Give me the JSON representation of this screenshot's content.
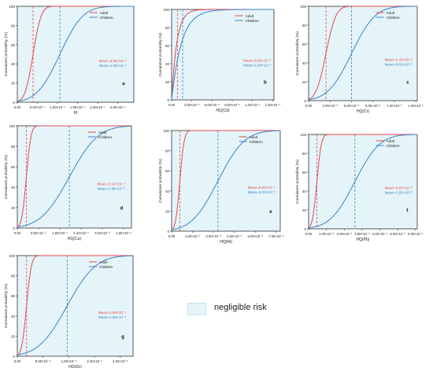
{
  "legend": {
    "label": "negligible risk",
    "color": "#e4f4f9"
  },
  "colors": {
    "adult": "#e8474b",
    "children": "#3e82c6",
    "shade": "#e4f4f9",
    "axis": "#333333"
  },
  "ylabel": "Cumulative probability (%)",
  "series_names": [
    "Adult",
    "Children"
  ],
  "yticks": [
    "0",
    "20",
    "40",
    "60",
    "80",
    "100"
  ],
  "chart_data": [
    {
      "type": "line",
      "panel_label": "a",
      "xlabel": "HI",
      "xticks": [
        "0.00",
        "5.00×10⁻²",
        "1.00×10⁻¹",
        "1.50×10⁻¹",
        "2.00×10⁻¹",
        "2.50×10⁻¹"
      ],
      "xlim": [
        0,
        0.29
      ],
      "ylim": [
        0,
        100
      ],
      "shaded_to": 0.29,
      "adult": {
        "mean_label": "Mean=3.92×10⁻²",
        "mean": 0.0392,
        "sd": 0.016,
        "curve": "erf"
      },
      "children": {
        "mean_label": "Mean=1.06×10⁻¹",
        "mean": 0.106,
        "sd": 0.045,
        "curve": "erf"
      }
    },
    {
      "type": "line",
      "panel_label": "b",
      "xlabel": "HQ(Cd)",
      "xticks": [
        "0.00",
        "3.00×10⁻²",
        "6.00×10⁻²",
        "9.00×10⁻²",
        "1.20×10⁻¹",
        "1.50×10⁻¹"
      ],
      "xlim": [
        0,
        0.152
      ],
      "ylim": [
        0,
        100
      ],
      "shaded_to": 0.152,
      "adult": {
        "mean_label": "Mean=8.63×10⁻³",
        "mean": 0.00863,
        "curve": "sat"
      },
      "children": {
        "mean_label": "Mean=1.64×10⁻²",
        "mean": 0.0164,
        "curve": "sat"
      }
    },
    {
      "type": "line",
      "panel_label": "c",
      "xlabel": "HQ(Cr)",
      "xticks": [
        "0.00",
        "3.00×10⁻²",
        "6.00×10⁻²",
        "9.00×10⁻²",
        "1.20×10⁻¹",
        "1.50×10⁻¹"
      ],
      "xlim": [
        0,
        0.152
      ],
      "ylim": [
        0,
        100
      ],
      "shaded_to": 0.152,
      "adult": {
        "mean_label": "Mean=2.43×10⁻²",
        "mean": 0.0243,
        "sd": 0.011,
        "curve": "erf"
      },
      "children": {
        "mean_label": "Mean=6.01×10⁻²",
        "mean": 0.0601,
        "sd": 0.026,
        "curve": "erf"
      }
    },
    {
      "type": "line",
      "panel_label": "d",
      "xlabel": "HQ(Cu)",
      "xticks": [
        "0.00",
        "8.00×10⁻⁴",
        "1.60×10⁻³",
        "2.40×10⁻³",
        "3.20×10⁻³",
        "4.00×10⁻³"
      ],
      "xlim": [
        0,
        0.0043
      ],
      "ylim": [
        0,
        100
      ],
      "shaded_to": 0.0043,
      "adult": {
        "mean_label": "Mean=3.41×10⁻⁴",
        "mean": 0.000341,
        "sd": 0.00014,
        "curve": "erf"
      },
      "children": {
        "mean_label": "Mean=1.96×10⁻³",
        "mean": 0.00196,
        "sd": 0.00085,
        "curve": "erf"
      }
    },
    {
      "type": "line",
      "panel_label": "e",
      "xlabel": "HQ(Ni)",
      "xticks": [
        "0.00",
        "1.50×10⁻³",
        "3.00×10⁻³",
        "4.50×10⁻³",
        "6.00×10⁻³",
        "7.50×10⁻³"
      ],
      "xlim": [
        0,
        0.0078
      ],
      "ylim": [
        0,
        100
      ],
      "shaded_to": 0.0078,
      "adult": {
        "mean_label": "Mean=5.92×10⁻⁴",
        "mean": 0.000592,
        "sd": 0.00025,
        "curve": "erf"
      },
      "children": {
        "mean_label": "Mean=3.33×10⁻³",
        "mean": 0.00333,
        "sd": 0.0015,
        "curve": "erf"
      }
    },
    {
      "type": "line",
      "panel_label": "f",
      "xlabel": "HQ(Pb)",
      "xticks": [
        "0.00",
        "1.00×10⁻²",
        "2.00×10⁻²",
        "3.00×10⁻²",
        "4.00×10⁻²",
        "5.00×10⁻²",
        "6.00×10⁻²"
      ],
      "xlim": [
        0,
        0.061
      ],
      "ylim": [
        0,
        100
      ],
      "shaded_to": 0.061,
      "adult": {
        "mean_label": "Mean=4.67×10⁻³",
        "mean": 0.00467,
        "sd": 0.002,
        "curve": "erf"
      },
      "children": {
        "mean_label": "Mean=2.60×10⁻²",
        "mean": 0.026,
        "sd": 0.011,
        "curve": "erf"
      }
    },
    {
      "type": "line",
      "panel_label": "g",
      "xlabel": "HQ(Zn)",
      "xticks": [
        "0.00",
        "8.00×10⁻⁴",
        "1.60×10⁻³",
        "2.40×10⁻³",
        "3.20×10⁻³"
      ],
      "xlim": [
        0,
        0.0036
      ],
      "ylim": [
        0,
        100
      ],
      "shaded_to": 0.0036,
      "adult": {
        "mean_label": "Mean=2.88×10⁻⁴",
        "mean": 0.000288,
        "sd": 0.00012,
        "curve": "erf"
      },
      "children": {
        "mean_label": "Mean=1.55×10⁻³",
        "mean": 0.00155,
        "sd": 0.0007,
        "curve": "erf"
      }
    }
  ]
}
